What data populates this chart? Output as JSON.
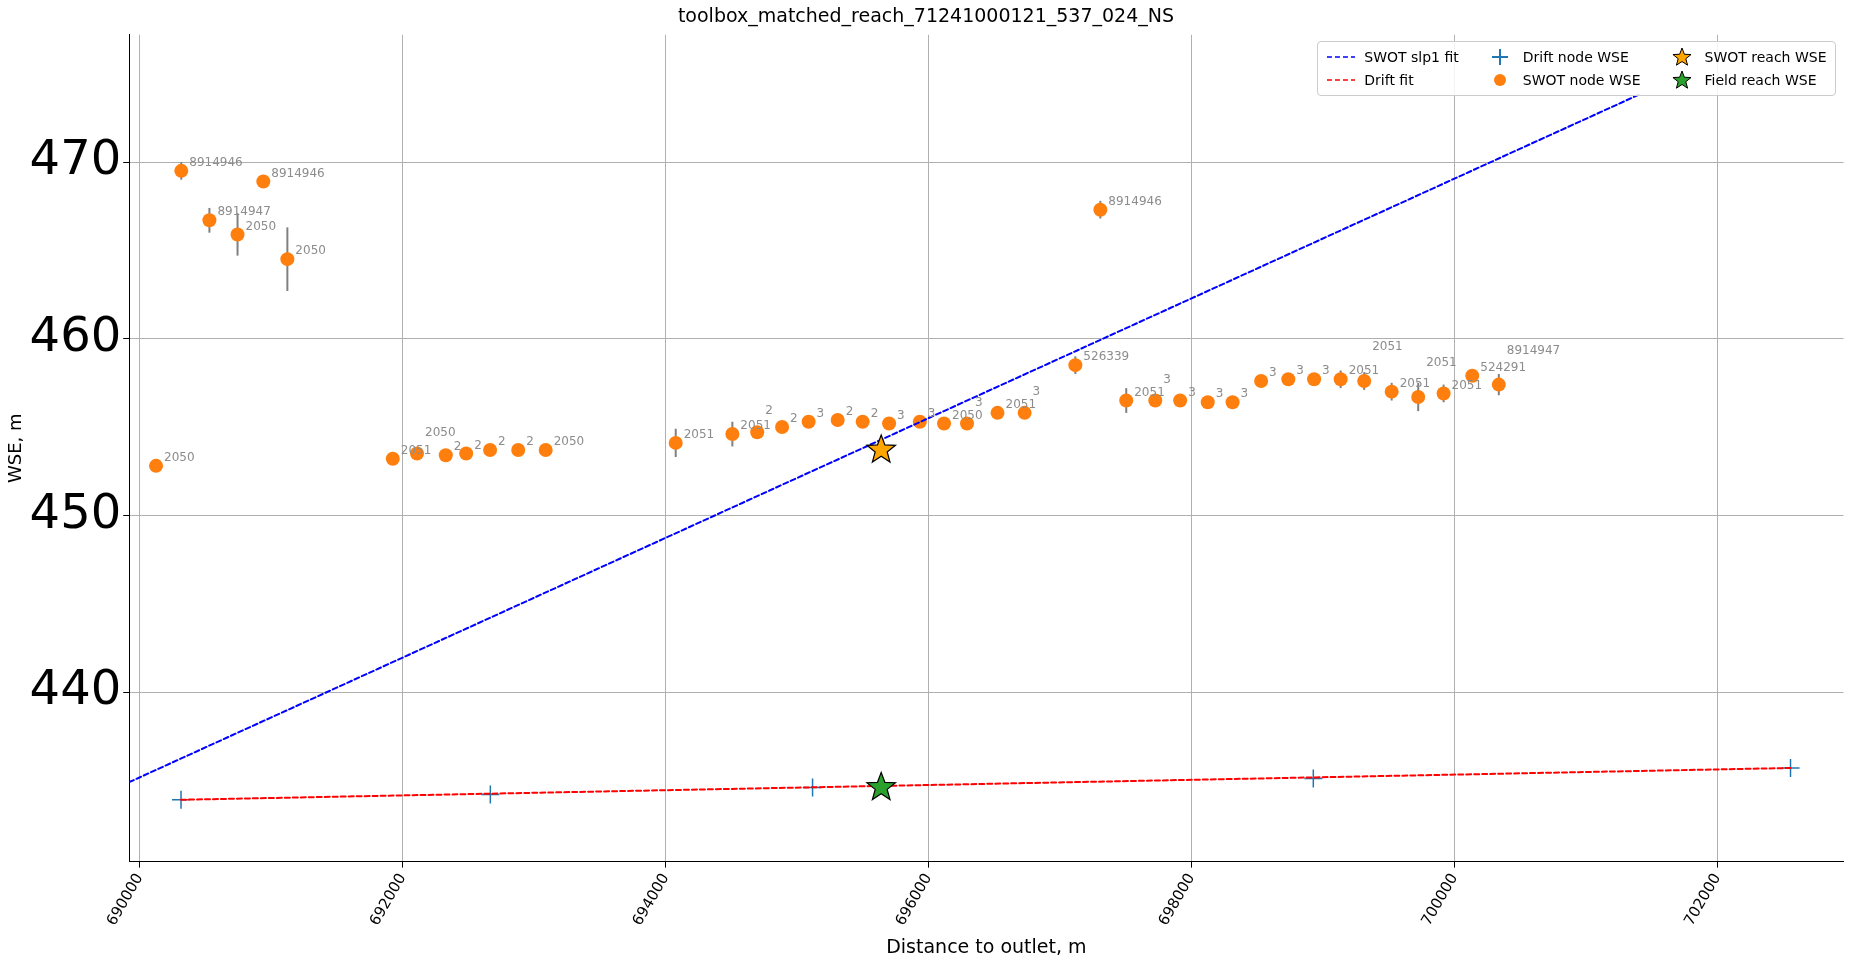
{
  "chart_data": {
    "type": "scatter",
    "title": "toolbox_matched_reach_71241000121_537_024_NS",
    "xlabel": "Distance to outlet, m",
    "ylabel": "WSE, m",
    "xlim": [
      689920,
      702960
    ],
    "ylim": [
      430.4,
      477.2
    ],
    "xticks": [
      690000,
      692000,
      694000,
      696000,
      698000,
      700000,
      702000
    ],
    "yticks": [
      440,
      450,
      460,
      470
    ],
    "grid": true,
    "legend": "top right",
    "series": [
      {
        "name": "SWOT slp1 fit",
        "type": "line",
        "color": "#0000ff",
        "line_style": "dashed",
        "marker": "none",
        "x": [
          689920,
          701400
        ],
        "values": [
          434.9,
          473.8
        ]
      },
      {
        "name": "Drift fit",
        "type": "line",
        "color": "#ff0000",
        "line_style": "dashed",
        "marker": "none",
        "x": [
          702557,
          690314
        ],
        "values": [
          435.7,
          433.9
        ]
      },
      {
        "name": "Drift node WSE",
        "type": "scatter",
        "color": "#1f77b4",
        "marker": "cross",
        "x": [
          690314,
          692667,
          695118,
          698927,
          702557
        ],
        "values": [
          433.9,
          434.2,
          434.6,
          435.1,
          435.7
        ]
      },
      {
        "name": "SWOT node WSE",
        "type": "scatter",
        "color": "#ff7f0e",
        "marker": "circle",
        "x": [
          690124,
          690316,
          690530,
          690744,
          690940,
          691123,
          691925,
          692109,
          692328,
          692483,
          692665,
          692879,
          693088,
          694077,
          694508,
          694697,
          694886,
          695088,
          695309,
          695499,
          695700,
          695934,
          696118,
          696293,
          696525,
          696731,
          697117,
          697307,
          697504,
          697725,
          697914,
          698124,
          698313,
          698530,
          698737,
          698933,
          699135,
          699314,
          699523,
          699725,
          699918,
          700136,
          700338
        ],
        "values": [
          452.8,
          469.5,
          466.7,
          465.9,
          468.9,
          464.5,
          453.2,
          453.5,
          453.4,
          453.5,
          453.7,
          453.7,
          453.7,
          454.1,
          454.6,
          454.7,
          455.0,
          455.3,
          455.4,
          455.3,
          455.2,
          455.3,
          455.2,
          455.2,
          455.8,
          455.8,
          458.5,
          467.3,
          456.5,
          456.5,
          456.5,
          456.4,
          456.4,
          457.6,
          457.7,
          457.7,
          457.7,
          457.6,
          457.0,
          456.7,
          456.9,
          457.9,
          457.4
        ],
        "errors": [
          null,
          0.5,
          0.7,
          1.2,
          null,
          1.8,
          null,
          null,
          null,
          null,
          null,
          null,
          null,
          0.8,
          0.7,
          null,
          null,
          null,
          null,
          null,
          null,
          null,
          null,
          null,
          null,
          null,
          0.5,
          0.5,
          0.7,
          null,
          null,
          null,
          null,
          null,
          null,
          null,
          0.5,
          0.5,
          0.5,
          0.8,
          0.5,
          null,
          0.6
        ]
      },
      {
        "name": "SWOT reach WSE",
        "type": "scatter",
        "color": "#ffa500",
        "marker": "star",
        "x": [
          695640
        ],
        "values": [
          453.7
        ]
      },
      {
        "name": "Field reach WSE",
        "type": "scatter",
        "color": "#2ca02c",
        "marker": "star",
        "x": [
          695640
        ],
        "values": [
          434.6
        ]
      }
    ],
    "annotations": [
      {
        "text": "2050",
        "x": 690124,
        "y": 452.8
      },
      {
        "text": "8914946",
        "x": 690316,
        "y": 469.5
      },
      {
        "text": "8914947",
        "x": 690530,
        "y": 466.7
      },
      {
        "text": "2050",
        "x": 690744,
        "y": 465.9
      },
      {
        "text": "8914946",
        "x": 690940,
        "y": 468.9
      },
      {
        "text": "2050",
        "x": 691123,
        "y": 464.5
      },
      {
        "text": "2051",
        "x": 691925,
        "y": 453.2
      },
      {
        "text": "2050",
        "x": 692109,
        "y": 453.5
      },
      {
        "text": "2",
        "x": 692328,
        "y": 453.4
      },
      {
        "text": "2",
        "x": 692483,
        "y": 453.5
      },
      {
        "text": "2",
        "x": 692665,
        "y": 453.7
      },
      {
        "text": "2",
        "x": 692879,
        "y": 453.7
      },
      {
        "text": "2050",
        "x": 693088,
        "y": 453.7
      },
      {
        "text": "2051",
        "x": 694077,
        "y": 454.1
      },
      {
        "text": "2051",
        "x": 694508,
        "y": 454.6
      },
      {
        "text": "2",
        "x": 694697,
        "y": 454.7
      },
      {
        "text": "2",
        "x": 694886,
        "y": 455.0
      },
      {
        "text": "3",
        "x": 695088,
        "y": 455.3
      },
      {
        "text": "2",
        "x": 695309,
        "y": 455.4
      },
      {
        "text": "2",
        "x": 695499,
        "y": 455.3
      },
      {
        "text": "3",
        "x": 695700,
        "y": 455.2
      },
      {
        "text": "3",
        "x": 695934,
        "y": 455.3
      },
      {
        "text": "2050",
        "x": 696118,
        "y": 455.2
      },
      {
        "text": "3",
        "x": 696293,
        "y": 455.2
      },
      {
        "text": "2051",
        "x": 696525,
        "y": 455.8
      },
      {
        "text": "3",
        "x": 696731,
        "y": 455.8
      },
      {
        "text": "526339",
        "x": 697117,
        "y": 458.5
      },
      {
        "text": "8914946",
        "x": 697307,
        "y": 467.3
      },
      {
        "text": "2051",
        "x": 697504,
        "y": 456.5
      },
      {
        "text": "3",
        "x": 697725,
        "y": 456.5
      },
      {
        "text": "3",
        "x": 697914,
        "y": 456.5
      },
      {
        "text": "3",
        "x": 698124,
        "y": 456.4
      },
      {
        "text": "3",
        "x": 698313,
        "y": 456.4
      },
      {
        "text": "3",
        "x": 698530,
        "y": 457.6
      },
      {
        "text": "3",
        "x": 698737,
        "y": 457.7
      },
      {
        "text": "3",
        "x": 698933,
        "y": 457.7
      },
      {
        "text": "2051",
        "x": 699135,
        "y": 457.7
      },
      {
        "text": "2051",
        "x": 699314,
        "y": 457.6
      },
      {
        "text": "2051",
        "x": 699523,
        "y": 457.0
      },
      {
        "text": "2051",
        "x": 699725,
        "y": 456.7
      },
      {
        "text": "2051",
        "x": 699918,
        "y": 456.9
      },
      {
        "text": "524291",
        "x": 700136,
        "y": 457.9
      },
      {
        "text": "8914947",
        "x": 700338,
        "y": 457.4
      }
    ]
  }
}
